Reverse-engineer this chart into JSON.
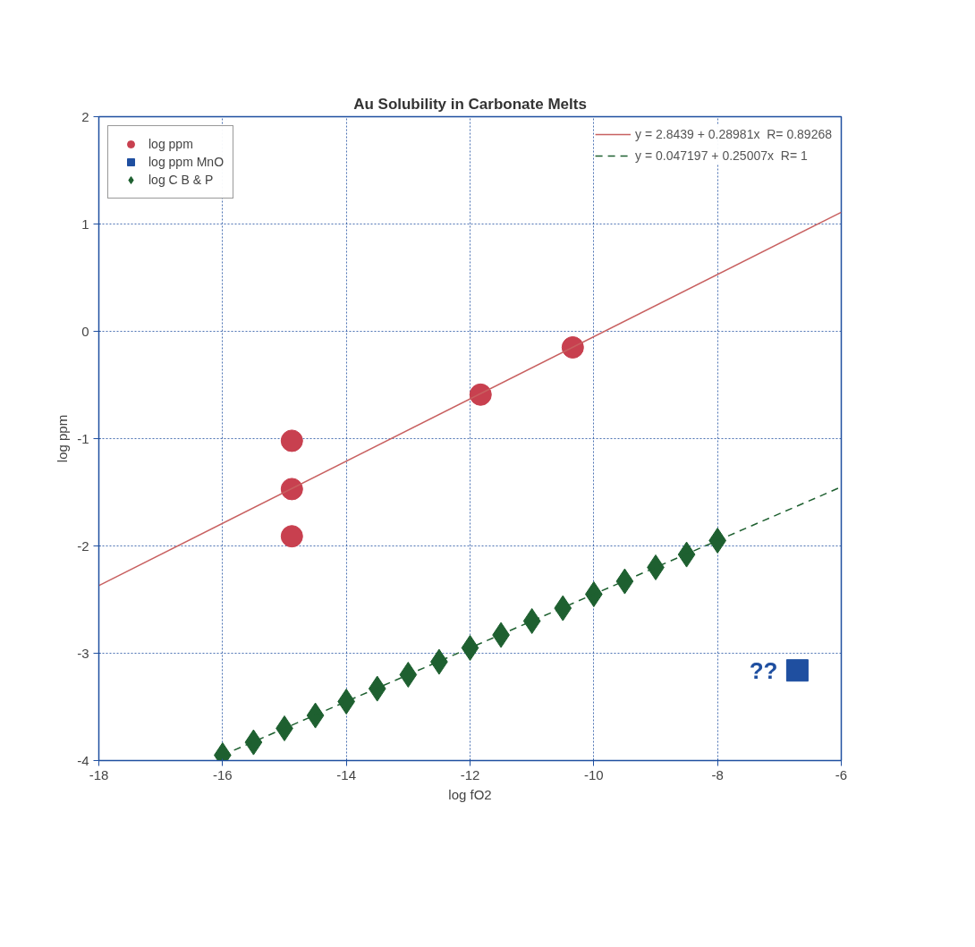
{
  "chart_data": {
    "type": "scatter",
    "title": "Au Solubility in Carbonate Melts",
    "xlabel": "log fO2",
    "ylabel": "log ppm",
    "xlim": [
      -18,
      -6
    ],
    "ylim": [
      -4,
      2
    ],
    "xticks": [
      -18,
      -16,
      -14,
      -12,
      -10,
      -8,
      -6
    ],
    "yticks": [
      -4,
      -3,
      -2,
      -1,
      0,
      1,
      2
    ],
    "grid": true,
    "legend": "top",
    "series": [
      {
        "name": "log ppm",
        "marker": "circle",
        "color": "#c8404f",
        "x": [
          -14.88,
          -14.88,
          -14.88,
          -11.83,
          -10.34
        ],
        "values": [
          -1.02,
          -1.47,
          -1.91,
          -0.59,
          -0.15
        ]
      },
      {
        "name": "log ppm MnO",
        "marker": "square",
        "color": "#1f4fa0",
        "x": [
          -6.71
        ],
        "values": [
          -3.16
        ]
      },
      {
        "name": "log C B & P",
        "marker": "diamond",
        "color": "#1e6030",
        "x": [
          -16,
          -15.5,
          -15,
          -14.5,
          -14,
          -13.5,
          -13,
          -12.5,
          -12,
          -11.5,
          -11,
          -10.5,
          -10,
          -9.5,
          -9,
          -8.5,
          -8
        ],
        "values": [
          -3.95,
          -3.83,
          -3.7,
          -3.58,
          -3.45,
          -3.33,
          -3.2,
          -3.08,
          -2.95,
          -2.83,
          -2.7,
          -2.58,
          -2.45,
          -2.33,
          -2.2,
          -2.08,
          -1.95
        ]
      },
      {
        "name": "y = 2.8439 + 0.28981x  R= 0.89268",
        "type": "line",
        "line_style": "solid",
        "color": "#c86060",
        "x": [
          -18,
          -6
        ],
        "values": [
          -2.37,
          1.11
        ]
      },
      {
        "name": "y = 0.047197 + 0.25007x  R= 1",
        "type": "line",
        "line_style": "dashed",
        "color": "#1e6030",
        "x": [
          -16,
          -6
        ],
        "values": [
          -3.95,
          -1.45
        ]
      }
    ],
    "annotations": [
      {
        "text": "??",
        "x": -6.71,
        "y": -3.16
      }
    ]
  }
}
